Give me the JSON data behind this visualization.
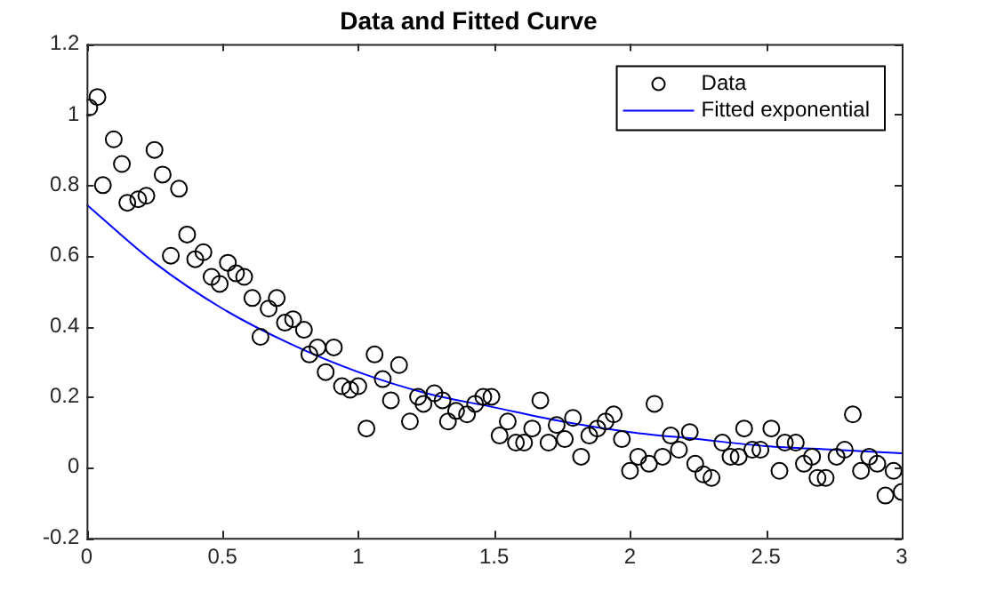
{
  "chart_data": {
    "type": "scatter",
    "title": "Data and Fitted Curve",
    "xlim": [
      0,
      3
    ],
    "xticks": [
      0,
      0.5,
      1,
      1.5,
      2,
      2.5,
      3
    ],
    "ylim": [
      -0.2,
      1.2
    ],
    "yticks": [
      -0.2,
      0,
      0.2,
      0.4,
      0.6,
      0.8,
      1,
      1.2
    ],
    "grid": false,
    "legend": "top right",
    "series": [
      {
        "name": "Data",
        "type": "scatter",
        "marker": "circle",
        "color": "#000000",
        "x": [
          0.01,
          0.04,
          0.06,
          0.1,
          0.13,
          0.15,
          0.19,
          0.22,
          0.25,
          0.28,
          0.31,
          0.34,
          0.37,
          0.4,
          0.43,
          0.46,
          0.49,
          0.52,
          0.55,
          0.58,
          0.61,
          0.64,
          0.67,
          0.7,
          0.73,
          0.76,
          0.8,
          0.82,
          0.85,
          0.88,
          0.91,
          0.94,
          0.97,
          1.0,
          1.03,
          1.06,
          1.09,
          1.12,
          1.15,
          1.19,
          1.22,
          1.24,
          1.28,
          1.31,
          1.33,
          1.36,
          1.4,
          1.43,
          1.46,
          1.49,
          1.52,
          1.55,
          1.58,
          1.61,
          1.64,
          1.67,
          1.7,
          1.73,
          1.76,
          1.79,
          1.82,
          1.85,
          1.88,
          1.91,
          1.94,
          1.97,
          2.0,
          2.03,
          2.07,
          2.09,
          2.12,
          2.15,
          2.18,
          2.22,
          2.24,
          2.27,
          2.3,
          2.34,
          2.37,
          2.4,
          2.42,
          2.45,
          2.48,
          2.52,
          2.55,
          2.57,
          2.61,
          2.64,
          2.67,
          2.69,
          2.72,
          2.76,
          2.79,
          2.82,
          2.85,
          2.88,
          2.91,
          2.94,
          2.97,
          3.0
        ],
        "values": [
          1.02,
          1.05,
          0.8,
          0.93,
          0.86,
          0.75,
          0.76,
          0.77,
          0.9,
          0.83,
          0.6,
          0.79,
          0.66,
          0.59,
          0.61,
          0.54,
          0.52,
          0.58,
          0.55,
          0.54,
          0.48,
          0.37,
          0.45,
          0.48,
          0.41,
          0.42,
          0.39,
          0.32,
          0.34,
          0.27,
          0.34,
          0.23,
          0.22,
          0.23,
          0.11,
          0.32,
          0.25,
          0.19,
          0.29,
          0.13,
          0.2,
          0.18,
          0.21,
          0.19,
          0.13,
          0.16,
          0.15,
          0.18,
          0.2,
          0.2,
          0.09,
          0.13,
          0.07,
          0.07,
          0.11,
          0.19,
          0.07,
          0.12,
          0.08,
          0.14,
          0.03,
          0.09,
          0.11,
          0.13,
          0.15,
          0.08,
          -0.01,
          0.03,
          0.01,
          0.18,
          0.03,
          0.09,
          0.05,
          0.1,
          0.01,
          -0.02,
          -0.03,
          0.07,
          0.03,
          0.03,
          0.11,
          0.05,
          0.05,
          0.11,
          -0.01,
          0.07,
          0.07,
          0.01,
          0.03,
          -0.03,
          -0.03,
          0.03,
          0.05,
          0.15,
          -0.01,
          0.03,
          0.01,
          -0.08,
          -0.01,
          -0.07
        ]
      },
      {
        "name": "Fitted exponential",
        "type": "line",
        "marker": "none",
        "line_style": "solid",
        "color": "#0000ff",
        "x": [
          0,
          0.25,
          0.5,
          0.75,
          1,
          1.25,
          1.5,
          1.75,
          2,
          2.25,
          2.5,
          2.75,
          3
        ],
        "values": [
          0.745,
          0.58,
          0.45,
          0.35,
          0.27,
          0.21,
          0.17,
          0.13,
          0.1,
          0.08,
          0.06,
          0.05,
          0.04
        ]
      }
    ]
  }
}
